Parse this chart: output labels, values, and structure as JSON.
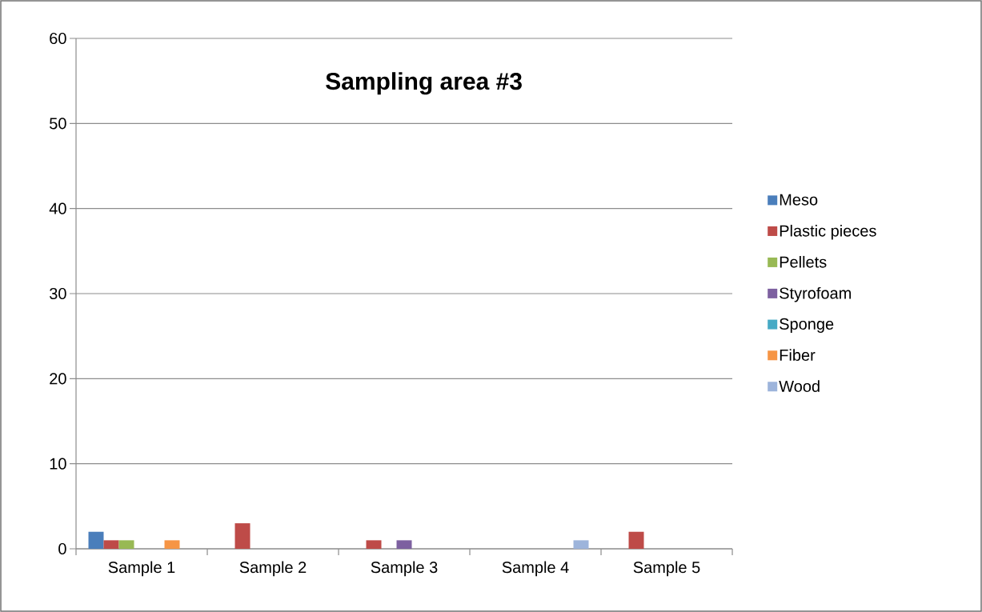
{
  "chart_data": {
    "type": "bar",
    "title": "Sampling area #3",
    "categories": [
      "Sample 1",
      "Sample 2",
      "Sample 3",
      "Sample 4",
      "Sample 5"
    ],
    "series": [
      {
        "name": "Meso",
        "color": "#4a7ebb",
        "values": [
          2,
          0,
          0,
          0,
          0
        ]
      },
      {
        "name": "Plastic pieces",
        "color": "#be4b48",
        "values": [
          1,
          3,
          1,
          0,
          2
        ]
      },
      {
        "name": "Pellets",
        "color": "#98b954",
        "values": [
          1,
          0,
          0,
          0,
          0
        ]
      },
      {
        "name": "Styrofoam",
        "color": "#7d60a0",
        "values": [
          0,
          0,
          1,
          0,
          0
        ]
      },
      {
        "name": "Sponge",
        "color": "#46aac5",
        "values": [
          0,
          0,
          0,
          0,
          0
        ]
      },
      {
        "name": "Fiber",
        "color": "#f69545",
        "values": [
          1,
          0,
          0,
          0,
          0
        ]
      },
      {
        "name": "Wood",
        "color": "#9db4db",
        "values": [
          0,
          0,
          0,
          1,
          0
        ]
      }
    ],
    "ylim": [
      0,
      60
    ],
    "yticks": [
      0,
      10,
      20,
      30,
      40,
      50,
      60
    ],
    "grid": "y",
    "legend": "right"
  }
}
